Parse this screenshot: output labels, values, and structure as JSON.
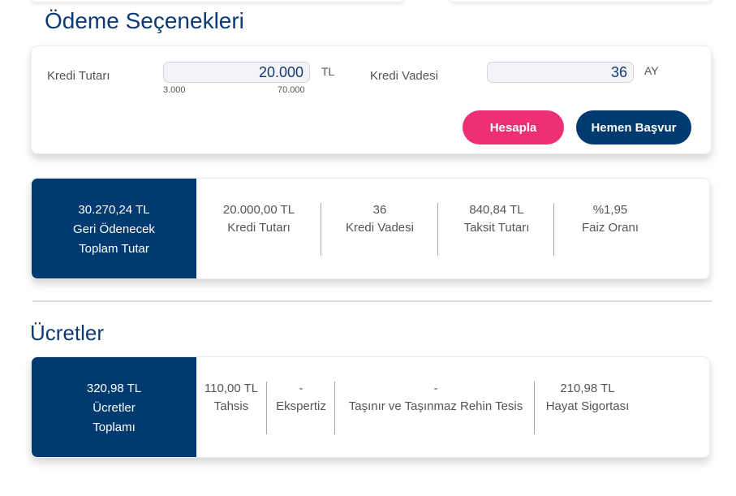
{
  "title": "Ödeme Seçenekleri",
  "form": {
    "amount_label": "Kredi Tutarı",
    "amount_value": "20.000",
    "amount_unit": "TL",
    "amount_min": "3.000",
    "amount_max": "70.000",
    "term_label": "Kredi Vadesi",
    "term_value": "36",
    "term_unit": "AY",
    "calculate_label": "Hesapla",
    "apply_label": "Hemen Başvur"
  },
  "colors": {
    "primary": "#003a70",
    "accent": "#ee2f74"
  },
  "summary": {
    "total_value": "30.270,24 TL",
    "total_label_1": "Geri Ödenecek",
    "total_label_2": "Toplam Tutar",
    "items": [
      {
        "value": "20.000,00 TL",
        "label": "Kredi Tutarı"
      },
      {
        "value": "36",
        "label": "Kredi Vadesi"
      },
      {
        "value": "840,84 TL",
        "label": "Taksit Tutarı"
      },
      {
        "value": "%1,95",
        "label": "Faiz Oranı"
      }
    ]
  },
  "fees_title": "Ücretler",
  "fees": {
    "total_value": "320,98 TL",
    "total_label_1": "Ücretler",
    "total_label_2": "Toplamı",
    "items": [
      {
        "value": "110,00 TL",
        "label": "Tahsis"
      },
      {
        "value": "-",
        "label": "Ekspertiz"
      },
      {
        "value": "-",
        "label": "Taşınır ve Taşınmaz Rehin Tesis"
      },
      {
        "value": "210,98 TL",
        "label": "Hayat Sigortası"
      }
    ]
  }
}
